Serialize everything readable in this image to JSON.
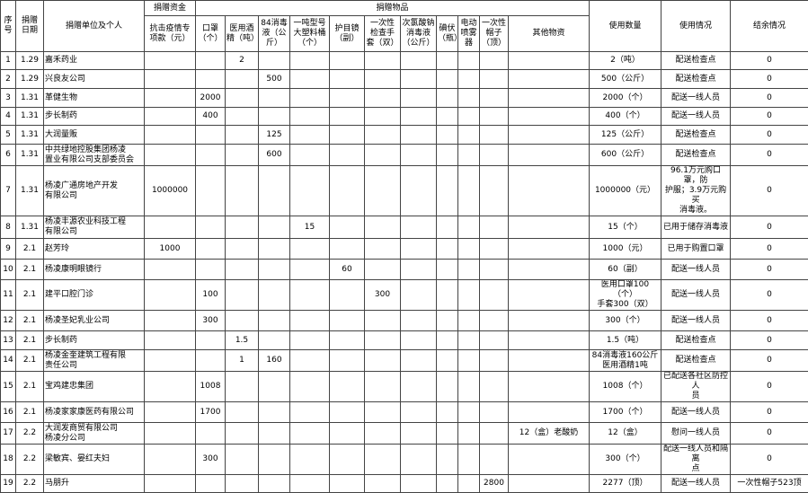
{
  "header": {
    "no": "序\n号",
    "date": "捐赠\n日期",
    "donor": "捐赠单位及个人",
    "funds_group": "捐赠资金",
    "items_group": "捐赠物品",
    "usage_qty": "使用数量",
    "usage_status": "使用情况",
    "balance": "结余情况",
    "sub": [
      "抗击疫情专\n项款（元）",
      "口罩\n（个）",
      "医用酒\n精（吨）",
      "84消毒\n液（公\n斤）",
      "一吨型号\n大塑料桶\n（个）",
      "护目镜\n（副）",
      "一次性\n检查手\n套（双）",
      "次氯酸钠\n消毒液\n（公斤）",
      "碘伏\n（瓶）",
      "电动\n喷雾\n器",
      "一次性\n帽子\n（顶）",
      "其他物资"
    ]
  },
  "rows": [
    [
      "1",
      "1.29",
      "嘉禾药业",
      "",
      "",
      "2",
      "",
      "",
      "",
      "",
      "",
      "",
      "",
      "",
      "",
      "2（吨）",
      "配送检查点",
      "0"
    ],
    [
      "2",
      "1.29",
      "兴良友公司",
      "",
      "",
      "",
      "500",
      "",
      "",
      "",
      "",
      "",
      "",
      "",
      "",
      "500（公斤）",
      "配送检查点",
      "0"
    ],
    [
      "3",
      "1.31",
      "革健生物",
      "",
      "2000",
      "",
      "",
      "",
      "",
      "",
      "",
      "",
      "",
      "",
      "",
      "2000（个）",
      "配送一线人员",
      "0"
    ],
    [
      "4",
      "1.31",
      "步长制药",
      "",
      "400",
      "",
      "",
      "",
      "",
      "",
      "",
      "",
      "",
      "",
      "",
      "400（个）",
      "配送一线人员",
      "0"
    ],
    [
      "5",
      "1.31",
      "大润量贩",
      "",
      "",
      "",
      "125",
      "",
      "",
      "",
      "",
      "",
      "",
      "",
      "",
      "125（公斤）",
      "配送检查点",
      "0"
    ],
    [
      "6",
      "1.31",
      "中共绿地控股集团杨凌\n置业有限公司支部委员会",
      "",
      "",
      "",
      "600",
      "",
      "",
      "",
      "",
      "",
      "",
      "",
      "",
      "600（公斤）",
      "配送检查点",
      "0"
    ],
    [
      "7",
      "1.31",
      "杨凌广通房地产开发\n有限公司",
      "1000000",
      "",
      "",
      "",
      "",
      "",
      "",
      "",
      "",
      "",
      "",
      "",
      "1000000（元）",
      "96.1万元购口罩，防\n护服；3.9万元购买\n消毒液。",
      "0"
    ],
    [
      "8",
      "1.31",
      "杨凌丰源农业科技工程\n有限公司",
      "",
      "",
      "",
      "",
      "15",
      "",
      "",
      "",
      "",
      "",
      "",
      "",
      "15（个）",
      "已用于储存消毒液",
      "0"
    ],
    [
      "9",
      "2.1",
      "赵芳玲",
      "1000",
      "",
      "",
      "",
      "",
      "",
      "",
      "",
      "",
      "",
      "",
      "",
      "1000（元）",
      "已用于购置口罩",
      "0"
    ],
    [
      "10",
      "2.1",
      "杨凌康明眼镜行",
      "",
      "",
      "",
      "",
      "",
      "60",
      "",
      "",
      "",
      "",
      "",
      "",
      "60（副）",
      "配送一线人员",
      "0"
    ],
    [
      "11",
      "2.1",
      "建平口腔门诊",
      "",
      "100",
      "",
      "",
      "",
      "",
      "300",
      "",
      "",
      "",
      "",
      "",
      "医用口罩100（个）\n手套300（双）",
      "配送一线人员",
      "0"
    ],
    [
      "12",
      "2.1",
      "杨凌圣妃乳业公司",
      "",
      "300",
      "",
      "",
      "",
      "",
      "",
      "",
      "",
      "",
      "",
      "",
      "300（个）",
      "配送一线人员",
      "0"
    ],
    [
      "13",
      "2.1",
      "步长制药",
      "",
      "",
      "1.5",
      "",
      "",
      "",
      "",
      "",
      "",
      "",
      "",
      "",
      "1.5（吨）",
      "配送检查点",
      "0"
    ],
    [
      "14",
      "2.1",
      "杨凌金奎建筑工程有限\n责任公司",
      "",
      "",
      "1",
      "160",
      "",
      "",
      "",
      "",
      "",
      "",
      "",
      "",
      "84消毒液160公斤\n医用酒精1吨",
      "配送检查点",
      "0"
    ],
    [
      "15",
      "2.1",
      "宝鸡建忠集团",
      "",
      "1008",
      "",
      "",
      "",
      "",
      "",
      "",
      "",
      "",
      "",
      "",
      "1008（个）",
      "已配送各社区防控人\n员",
      "0"
    ],
    [
      "16",
      "2.1",
      "杨凌家家康医药有限公司",
      "",
      "1700",
      "",
      "",
      "",
      "",
      "",
      "",
      "",
      "",
      "",
      "",
      "1700（个）",
      "配送一线人员",
      "0"
    ],
    [
      "17",
      "2.2",
      "大润发商贸有限公司\n杨凌分公司",
      "",
      "",
      "",
      "",
      "",
      "",
      "",
      "",
      "",
      "",
      "",
      "12（盒）老酸奶",
      "12（盒）",
      "慰问一线人员",
      "0"
    ],
    [
      "18",
      "2.2",
      "梁敏宾、晏红夫妇",
      "",
      "300",
      "",
      "",
      "",
      "",
      "",
      "",
      "",
      "",
      "",
      "",
      "300（个）",
      "配送一线人员和隔离\n点",
      "0"
    ],
    [
      "19",
      "2.2",
      "马朋升",
      "",
      "",
      "",
      "",
      "",
      "",
      "",
      "",
      "",
      "",
      "2800",
      "",
      "2277（顶）",
      "配送一线人员",
      "一次性帽子523顶"
    ]
  ]
}
